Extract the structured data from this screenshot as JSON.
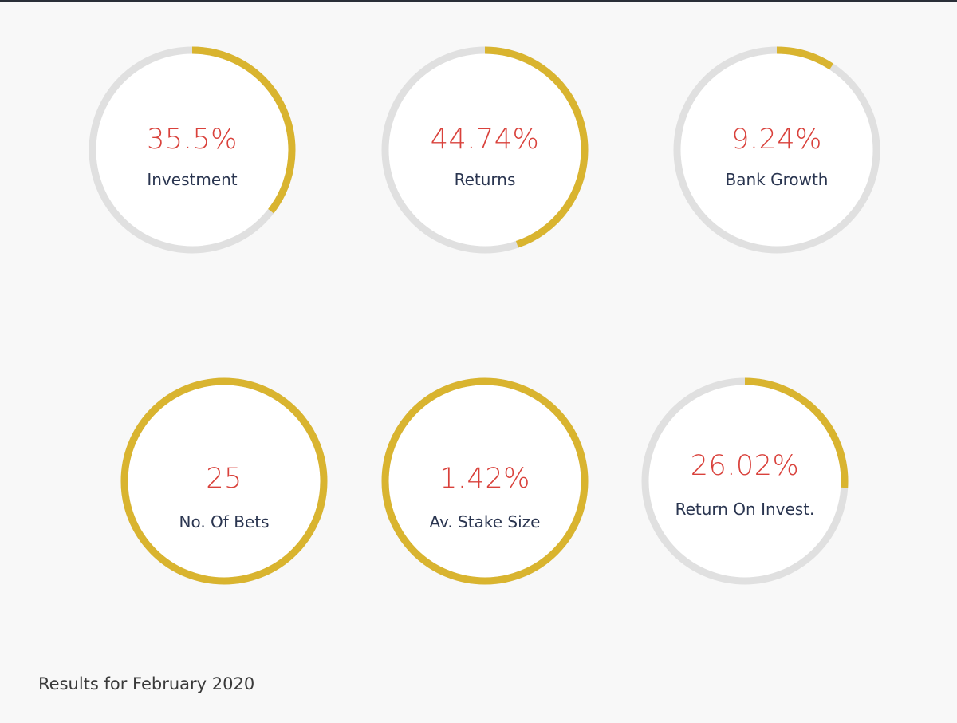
{
  "colors": {
    "accent": "#d9b42f",
    "track": "#e0e0e0",
    "value_text": "#d9413b",
    "label_text": "#2a3550",
    "background": "#f8f8f8"
  },
  "dials": [
    {
      "value": "35.5%",
      "label": "Investment",
      "progress": 0.355
    },
    {
      "value": "44.74%",
      "label": "Returns",
      "progress": 0.4474
    },
    {
      "value": "9.24%",
      "label": "Bank Growth",
      "progress": 0.0924
    },
    {
      "value": "25",
      "label": "No. Of Bets",
      "progress": 1.0
    },
    {
      "value": "1.42%",
      "label": "Av. Stake Size",
      "progress": 1.0
    },
    {
      "value": "26.02%",
      "label": "Return On Invest.",
      "progress": 0.2602
    }
  ],
  "footer": {
    "caption": "Results for February 2020"
  }
}
